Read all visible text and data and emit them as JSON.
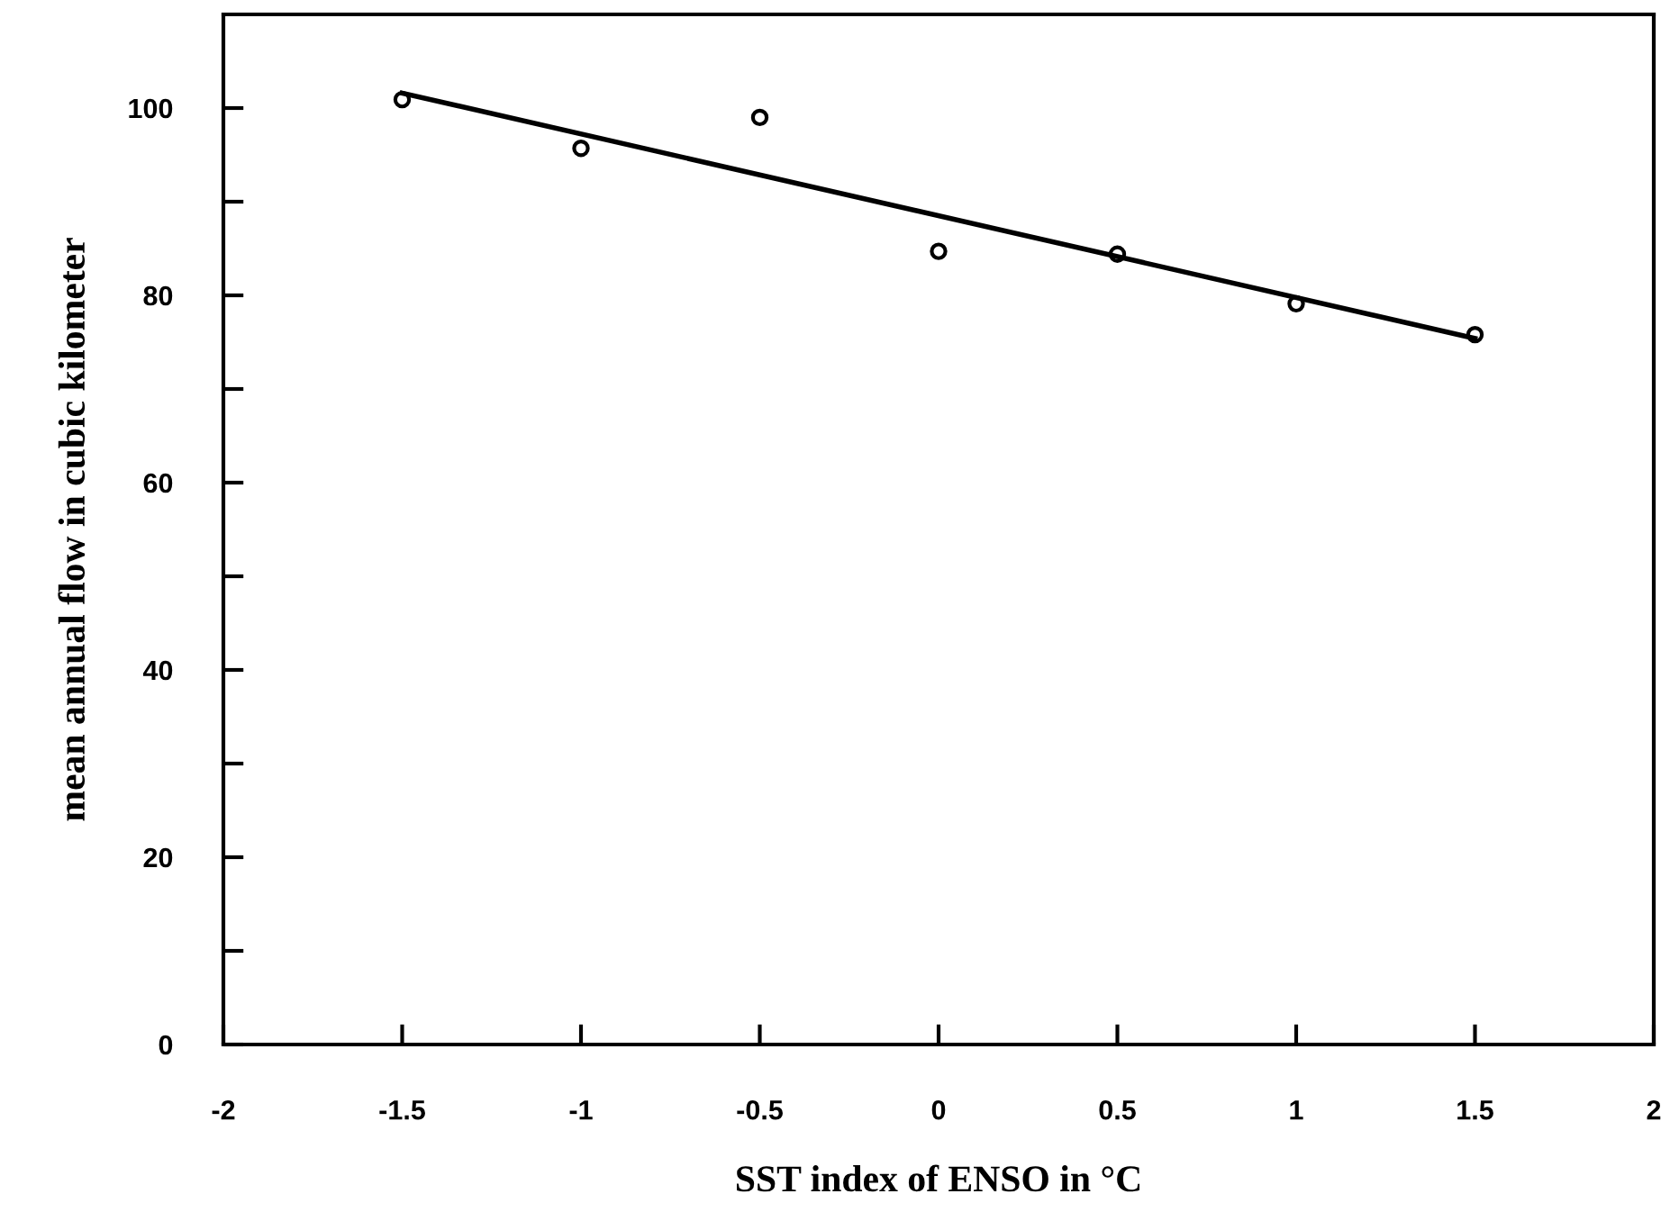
{
  "chart_data": {
    "type": "scatter",
    "xlabel": "SST index of ENSO in °C",
    "ylabel": "mean annual flow in cubic kilometer",
    "xlim": [
      -2,
      2
    ],
    "ylim": [
      0,
      110
    ],
    "xticks": [
      -2,
      -1.5,
      -1,
      -0.5,
      0,
      0.5,
      1,
      1.5,
      2
    ],
    "yticks": [
      0,
      {
        "value": 10,
        "label": null
      },
      20,
      {
        "value": 30,
        "label": null
      },
      40,
      {
        "value": 50,
        "label": null
      },
      60,
      {
        "value": 70,
        "label": null
      },
      80,
      {
        "value": 90,
        "label": null
      },
      100
    ],
    "grid": false,
    "legend": false,
    "marker": "circle",
    "series": [
      {
        "color": "#000000",
        "x": [
          -1.5,
          -1,
          -0.5,
          0,
          0.5,
          1,
          1.5
        ],
        "values": [
          100.9,
          95.7,
          99.0,
          84.7,
          84.4,
          79.1,
          75.8
        ]
      },
      {
        "type": "line",
        "color": "#000000",
        "x": [
          -1.5,
          1.5
        ],
        "values": [
          101.6,
          75.4
        ],
        "marker": "none",
        "line_style": "solid"
      }
    ]
  }
}
